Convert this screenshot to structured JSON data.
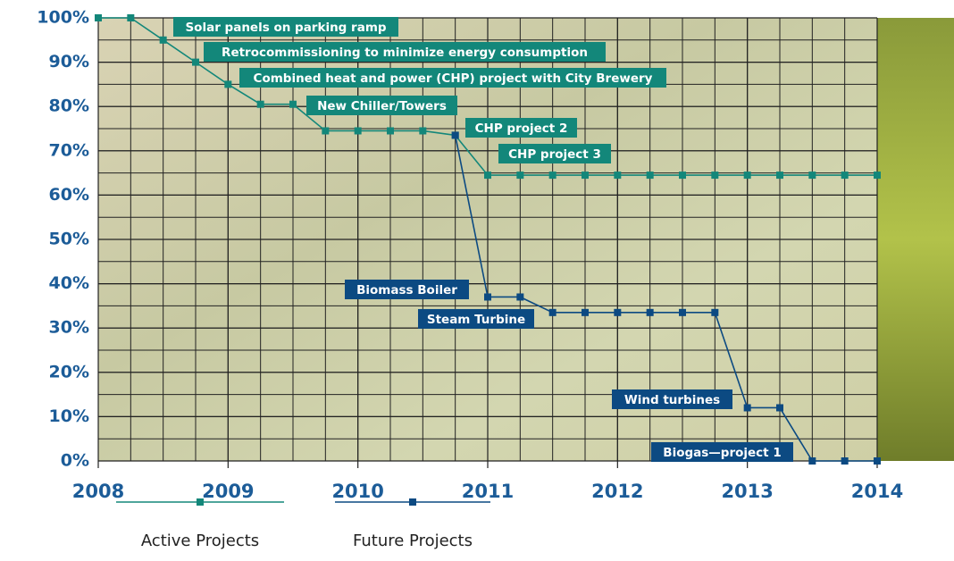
{
  "chart_data": {
    "type": "line",
    "x": [
      2008,
      2008.25,
      2008.5,
      2008.75,
      2009,
      2009.25,
      2009.5,
      2009.75,
      2010,
      2010.25,
      2010.5,
      2010.75,
      2011,
      2011.25,
      2011.5,
      2011.75,
      2012,
      2012.25,
      2012.5,
      2012.75,
      2013,
      2013.25,
      2013.5,
      2013.75,
      2014
    ],
    "series": [
      {
        "name": "Active Projects",
        "color": "#13877a",
        "values": [
          100,
          100,
          95,
          90,
          85,
          80.5,
          80.5,
          74.5,
          74.5,
          74.5,
          74.5,
          73.5,
          64.5,
          64.5,
          64.5,
          64.5,
          64.5,
          64.5,
          64.5,
          64.5,
          64.5,
          64.5,
          64.5,
          64.5,
          64.5
        ]
      },
      {
        "name": "Future Projects",
        "color": "#0c4a82",
        "values": [
          null,
          null,
          null,
          null,
          null,
          null,
          null,
          null,
          null,
          null,
          null,
          73.5,
          37,
          37,
          33.5,
          33.5,
          33.5,
          33.5,
          33.5,
          33.5,
          12,
          12,
          0,
          0,
          0
        ]
      }
    ],
    "xlim": [
      2008,
      2014
    ],
    "xticks": [
      2008,
      2009,
      2010,
      2011,
      2012,
      2013,
      2014
    ],
    "ylim": [
      0,
      100
    ],
    "yticks": [
      {
        "value": 0,
        "label": "0%"
      },
      {
        "value": 10,
        "label": "10%"
      },
      {
        "value": 20,
        "label": "20%"
      },
      {
        "value": 30,
        "label": "30%"
      },
      {
        "value": 40,
        "label": "40%"
      },
      {
        "value": 50,
        "label": "50%"
      },
      {
        "value": 60,
        "label": "60%"
      },
      {
        "value": 70,
        "label": "70%"
      },
      {
        "value": 80,
        "label": "80%"
      },
      {
        "value": 90,
        "label": "90%"
      },
      {
        "value": 100,
        "label": "100%"
      }
    ],
    "grid": true,
    "annotations": [
      "Solar panels on parking ramp",
      "Retrocommissioning to minimize energy consumption",
      "Combined heat and power (CHP) project with City Brewery",
      "New Chiller/Towers",
      "CHP project 2",
      "CHP project 3",
      "Biomass Boiler",
      "Steam Turbine",
      "Wind turbines",
      "Biogas—project 1"
    ]
  }
}
